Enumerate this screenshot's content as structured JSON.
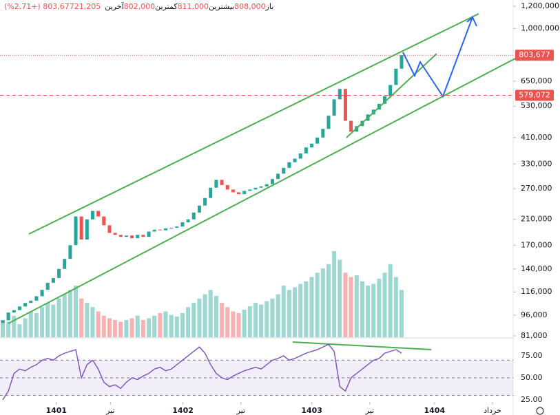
{
  "chart_data": {
    "type": "candlestick",
    "header": [
      {
        "label": "باز",
        "value": "808,000"
      },
      {
        "label": "بیشترین",
        "value": "811,000"
      },
      {
        "label": "کمترین",
        "value": "802,000"
      },
      {
        "label": "آخرین",
        "value": "803,677"
      }
    ],
    "change": "21,205 (+2.71%)",
    "open": [
      90000,
      92000,
      98000,
      100000,
      103000,
      106000,
      108000,
      112000,
      118000,
      125000,
      130000,
      140000,
      152000,
      170000,
      215000,
      178000,
      210000,
      225000,
      215000,
      200000,
      188000,
      185000,
      182000,
      184000,
      180000,
      185000,
      182000,
      190000,
      193000,
      192000,
      195000,
      196000,
      198000,
      205000,
      210000,
      222000,
      235000,
      250000,
      272000,
      290000,
      278000,
      268000,
      262000,
      258000,
      265000,
      268000,
      272000,
      275000,
      280000,
      292000,
      305000,
      320000,
      335000,
      345000,
      360000,
      378000,
      390000,
      410000,
      440000,
      490000,
      560000,
      610000,
      470000,
      430000,
      450000,
      470000,
      495000,
      515000,
      540000,
      575000,
      630000,
      720000
    ],
    "close": [
      92000,
      98000,
      100000,
      103000,
      106000,
      108000,
      112000,
      118000,
      125000,
      130000,
      140000,
      152000,
      170000,
      215000,
      178000,
      210000,
      225000,
      215000,
      200000,
      188000,
      185000,
      182000,
      184000,
      180000,
      185000,
      182000,
      190000,
      193000,
      192000,
      195000,
      196000,
      198000,
      205000,
      210000,
      222000,
      235000,
      250000,
      272000,
      290000,
      278000,
      268000,
      262000,
      258000,
      265000,
      268000,
      272000,
      275000,
      280000,
      292000,
      305000,
      320000,
      335000,
      345000,
      360000,
      378000,
      390000,
      410000,
      440000,
      490000,
      560000,
      610000,
      470000,
      430000,
      450000,
      470000,
      495000,
      515000,
      540000,
      575000,
      630000,
      720000,
      803677
    ],
    "up_color": "#26a69a",
    "down_color": "#ef5350",
    "volume": [
      20,
      18,
      25,
      15,
      22,
      30,
      28,
      35,
      40,
      38,
      45,
      50,
      55,
      60,
      45,
      40,
      35,
      30,
      25,
      22,
      20,
      18,
      20,
      22,
      25,
      20,
      22,
      25,
      28,
      30,
      26,
      24,
      28,
      35,
      40,
      45,
      50,
      55,
      48,
      40,
      35,
      30,
      28,
      32,
      36,
      40,
      38,
      42,
      45,
      50,
      60,
      55,
      58,
      62,
      65,
      70,
      75,
      80,
      85,
      100,
      90,
      75,
      70,
      72,
      65,
      60,
      62,
      68,
      75,
      85,
      70,
      55
    ],
    "vlim": [
      0,
      100
    ],
    "xlim": [
      0,
      92
    ],
    "ylim": [
      80100,
      1262000
    ],
    "log_scale": true,
    "yticks": [
      {
        "value": 1200000,
        "label": "1,200,000"
      },
      {
        "value": 1000000,
        "label": "1,000,000"
      },
      {
        "value": 650000,
        "label": "650,000"
      },
      {
        "value": 530000,
        "label": "530,000"
      },
      {
        "value": 410000,
        "label": "410,000"
      },
      {
        "value": 330000,
        "label": "330,000"
      },
      {
        "value": 270000,
        "label": "270,000"
      },
      {
        "value": 210000,
        "label": "210,000"
      },
      {
        "value": 170000,
        "label": "170,000"
      },
      {
        "value": 140000,
        "label": "140,000"
      },
      {
        "value": 116000,
        "label": "116,000"
      },
      {
        "value": 96000,
        "label": "96,000"
      },
      {
        "value": 81000,
        "label": "81,000"
      }
    ],
    "price_marks": [
      {
        "value": 803677,
        "label": "803,677",
        "style": "dotted"
      },
      {
        "value": 579072,
        "label": "579,072",
        "style": "dashed"
      }
    ],
    "xticks": [
      {
        "value": 10.1,
        "label": "1401"
      },
      {
        "value": 19.8,
        "label": "تیر"
      },
      {
        "value": 32.8,
        "label": "1402"
      },
      {
        "value": 43.2,
        "label": "تیر"
      },
      {
        "value": 55.9,
        "label": "1403"
      },
      {
        "value": 66.3,
        "label": "تیر"
      },
      {
        "value": 77.9,
        "label": "1404"
      },
      {
        "value": 88.3,
        "label": "خرداد"
      }
    ],
    "rsi": {
      "values": [
        25,
        35,
        55,
        60,
        58,
        62,
        65,
        70,
        72,
        70,
        75,
        78,
        80,
        82,
        50,
        65,
        70,
        60,
        45,
        40,
        42,
        38,
        45,
        50,
        48,
        52,
        55,
        60,
        62,
        58,
        60,
        65,
        70,
        75,
        80,
        85,
        78,
        65,
        55,
        50,
        48,
        52,
        55,
        58,
        60,
        62,
        60,
        65,
        70,
        72,
        75,
        70,
        72,
        75,
        78,
        80,
        82,
        85,
        88,
        80,
        40,
        35,
        50,
        55,
        60,
        65,
        70,
        72,
        78,
        80,
        82,
        78
      ],
      "color": "#7e57c2",
      "ylim": [
        23.4,
        93.75
      ],
      "band": [
        30,
        70
      ],
      "levels": [
        30,
        50,
        70
      ],
      "yticks": [
        {
          "value": 75,
          "label": "75.00"
        },
        {
          "value": 50,
          "label": "50.00"
        },
        {
          "value": 25,
          "label": "25.00"
        }
      ]
    }
  }
}
